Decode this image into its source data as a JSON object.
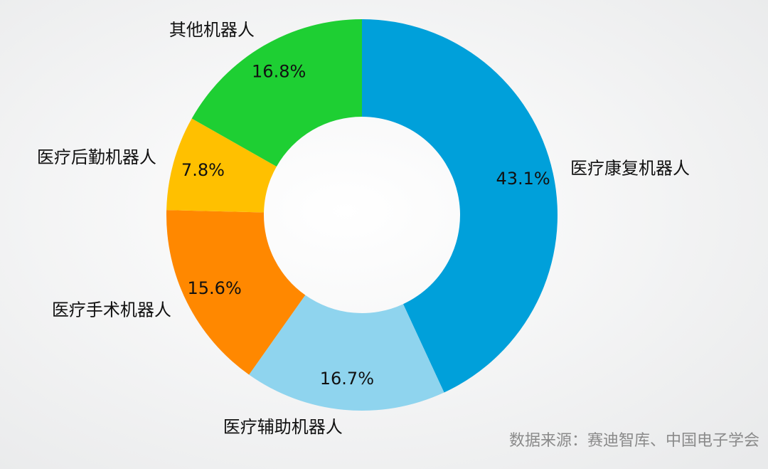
{
  "chart_data": {
    "type": "donut",
    "categories": [
      "医疗康复机器人",
      "医疗辅助机器人",
      "医疗手术机器人",
      "医疗后勤机器人",
      "其他机器人"
    ],
    "values": [
      43.1,
      16.7,
      15.6,
      7.8,
      16.8
    ],
    "value_labels": [
      "43.1%",
      "16.7%",
      "15.6%",
      "7.8%",
      "16.8%"
    ],
    "colors": [
      "#00a0da",
      "#8fd4ee",
      "#ff8800",
      "#ffc000",
      "#1ecf33"
    ],
    "source": "数据来源：赛迪智库、中国电子学会"
  }
}
